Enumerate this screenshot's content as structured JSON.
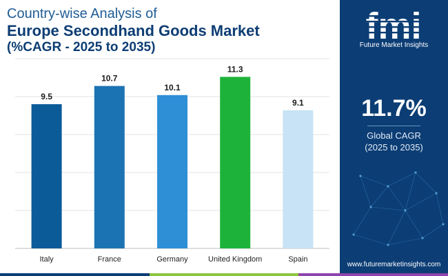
{
  "title": {
    "line1": "Country-wise Analysis of",
    "line2": "Europe Secondhand Goods Market",
    "line3": "(%CAGR - 2025 to 2035)"
  },
  "chart_data": {
    "type": "bar",
    "categories": [
      "Italy",
      "France",
      "Germany",
      "United Kingdom",
      "Spain"
    ],
    "values": [
      9.5,
      10.7,
      10.1,
      11.3,
      9.1
    ],
    "value_labels": [
      "9.5",
      "10.7",
      "10.1",
      "11.3",
      "9.1"
    ],
    "colors": [
      "#0c5b99",
      "#1b73b3",
      "#2e8fd6",
      "#1db33a",
      "#c7e3f5"
    ],
    "ylim": [
      0,
      12.5
    ],
    "grid": true,
    "xlabel": "",
    "ylabel": ""
  },
  "sidebar": {
    "logo_text": "fmi",
    "logo_subtitle": "Future Market Insights",
    "cagr_value": "11.7%",
    "cagr_label_line1": "Global CAGR",
    "cagr_label_line2": "(2025 to 2035)",
    "website": "www.futuremarketinsights.com"
  },
  "colors": {
    "panel_bg": "#0c3d75",
    "title_dark": "#0d3d73",
    "stripe": [
      "#0c3d75",
      "#8cc63f",
      "#8e44ad"
    ]
  }
}
